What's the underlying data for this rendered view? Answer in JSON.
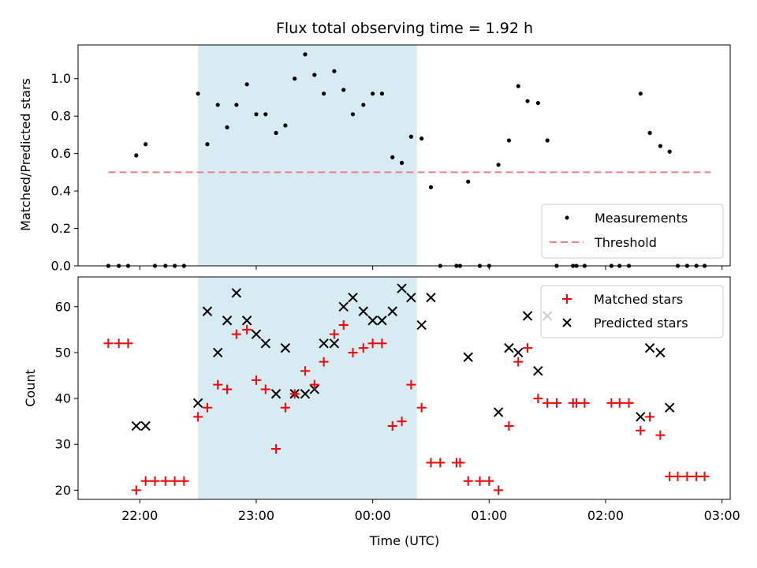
{
  "chart_data": {
    "title": "Flux total observing time = 1.92 h",
    "xlabel": "Time (UTC)",
    "x_ticks": [
      "22:00",
      "23:00",
      "00:00",
      "01:00",
      "02:00",
      "03:00"
    ],
    "x_range_hours": [
      21.47,
      27.07
    ],
    "highlight_span": {
      "start": 22.5,
      "end": 24.38,
      "color": "#add8e6"
    },
    "colors": {
      "threshold": "#f08080",
      "matched": "#ff0000",
      "predicted": "#000000",
      "measurement": "#000000",
      "span": "#add8e6"
    },
    "top": {
      "type": "scatter",
      "ylabel": "Matched/Predicted stars",
      "ylim": [
        0,
        1.18
      ],
      "y_ticks": [
        0.0,
        0.2,
        0.4,
        0.6,
        0.8,
        1.0
      ],
      "y_tick_labels": [
        "0.0",
        "0.2",
        "0.4",
        "0.6",
        "0.8",
        "1.0"
      ],
      "threshold": {
        "value": 0.5,
        "x_start": 21.73,
        "x_end": 26.9
      },
      "legend": [
        "Measurements",
        "Threshold"
      ],
      "legend_position": "lower-right",
      "measurements": [
        [
          21.73,
          0
        ],
        [
          21.82,
          0
        ],
        [
          21.9,
          0
        ],
        [
          21.97,
          0.59
        ],
        [
          22.05,
          0.65
        ],
        [
          22.13,
          0
        ],
        [
          22.22,
          0
        ],
        [
          22.3,
          0
        ],
        [
          22.38,
          0
        ],
        [
          22.5,
          0.92
        ],
        [
          22.58,
          0.65
        ],
        [
          22.67,
          0.86
        ],
        [
          22.75,
          0.74
        ],
        [
          22.83,
          0.86
        ],
        [
          22.92,
          0.97
        ],
        [
          23.0,
          0.81
        ],
        [
          23.08,
          0.81
        ],
        [
          23.17,
          0.71
        ],
        [
          23.25,
          0.75
        ],
        [
          23.33,
          1.0
        ],
        [
          23.42,
          1.13
        ],
        [
          23.5,
          1.02
        ],
        [
          23.58,
          0.92
        ],
        [
          23.67,
          1.04
        ],
        [
          23.75,
          0.94
        ],
        [
          23.83,
          0.81
        ],
        [
          23.92,
          0.86
        ],
        [
          24.0,
          0.92
        ],
        [
          24.08,
          0.92
        ],
        [
          24.17,
          0.58
        ],
        [
          24.25,
          0.55
        ],
        [
          24.33,
          0.69
        ],
        [
          24.42,
          0.68
        ],
        [
          24.5,
          0.42
        ],
        [
          24.58,
          0
        ],
        [
          24.72,
          0
        ],
        [
          24.75,
          0
        ],
        [
          24.82,
          0.45
        ],
        [
          24.92,
          0
        ],
        [
          25.0,
          0
        ],
        [
          25.08,
          0.54
        ],
        [
          25.17,
          0.67
        ],
        [
          25.25,
          0.96
        ],
        [
          25.33,
          0.88
        ],
        [
          25.42,
          0.87
        ],
        [
          25.5,
          0.67
        ],
        [
          25.58,
          0
        ],
        [
          25.72,
          0
        ],
        [
          25.75,
          0
        ],
        [
          25.82,
          0
        ],
        [
          26.05,
          0
        ],
        [
          26.12,
          0
        ],
        [
          26.2,
          0
        ],
        [
          26.3,
          0.92
        ],
        [
          26.38,
          0.71
        ],
        [
          26.47,
          0.64
        ],
        [
          26.55,
          0.61
        ],
        [
          26.62,
          0
        ],
        [
          26.7,
          0
        ],
        [
          26.78,
          0
        ],
        [
          26.85,
          0
        ]
      ]
    },
    "bottom": {
      "type": "scatter",
      "ylabel": "Count",
      "ylim": [
        18,
        66.5
      ],
      "y_ticks": [
        20,
        30,
        40,
        50,
        60
      ],
      "y_tick_labels": [
        "20",
        "30",
        "40",
        "50",
        "60"
      ],
      "legend": [
        "Matched stars",
        "Predicted stars"
      ],
      "legend_position": "upper-right",
      "matched": [
        [
          21.73,
          52
        ],
        [
          21.82,
          52
        ],
        [
          21.9,
          52
        ],
        [
          21.97,
          20
        ],
        [
          22.05,
          22
        ],
        [
          22.13,
          22
        ],
        [
          22.22,
          22
        ],
        [
          22.3,
          22
        ],
        [
          22.38,
          22
        ],
        [
          22.5,
          36
        ],
        [
          22.58,
          38
        ],
        [
          22.67,
          43
        ],
        [
          22.75,
          42
        ],
        [
          22.83,
          54
        ],
        [
          22.92,
          55
        ],
        [
          23.0,
          44
        ],
        [
          23.08,
          42
        ],
        [
          23.17,
          29
        ],
        [
          23.25,
          38
        ],
        [
          23.33,
          41
        ],
        [
          23.42,
          46
        ],
        [
          23.5,
          43
        ],
        [
          23.58,
          48
        ],
        [
          23.67,
          54
        ],
        [
          23.75,
          56
        ],
        [
          23.83,
          50
        ],
        [
          23.92,
          51
        ],
        [
          24.0,
          52
        ],
        [
          24.08,
          52
        ],
        [
          24.17,
          34
        ],
        [
          24.25,
          35
        ],
        [
          24.33,
          43
        ],
        [
          24.42,
          38
        ],
        [
          24.5,
          26
        ],
        [
          24.58,
          26
        ],
        [
          24.72,
          26
        ],
        [
          24.75,
          26
        ],
        [
          24.82,
          22
        ],
        [
          24.92,
          22
        ],
        [
          25.0,
          22
        ],
        [
          25.08,
          20
        ],
        [
          25.17,
          34
        ],
        [
          25.25,
          48
        ],
        [
          25.33,
          51
        ],
        [
          25.42,
          40
        ],
        [
          25.5,
          39
        ],
        [
          25.58,
          39
        ],
        [
          25.72,
          39
        ],
        [
          25.75,
          39
        ],
        [
          25.82,
          39
        ],
        [
          26.05,
          39
        ],
        [
          26.12,
          39
        ],
        [
          26.2,
          39
        ],
        [
          26.3,
          33
        ],
        [
          26.38,
          36
        ],
        [
          26.47,
          32
        ],
        [
          26.55,
          23
        ],
        [
          26.62,
          23
        ],
        [
          26.7,
          23
        ],
        [
          26.78,
          23
        ],
        [
          26.85,
          23
        ]
      ],
      "predicted": [
        [
          21.97,
          34
        ],
        [
          22.05,
          34
        ],
        [
          22.5,
          39
        ],
        [
          22.58,
          59
        ],
        [
          22.67,
          50
        ],
        [
          22.75,
          57
        ],
        [
          22.83,
          63
        ],
        [
          22.92,
          57
        ],
        [
          23.0,
          54
        ],
        [
          23.08,
          52
        ],
        [
          23.17,
          41
        ],
        [
          23.25,
          51
        ],
        [
          23.33,
          41
        ],
        [
          23.42,
          41
        ],
        [
          23.5,
          42
        ],
        [
          23.58,
          52
        ],
        [
          23.67,
          52
        ],
        [
          23.75,
          60
        ],
        [
          23.83,
          62
        ],
        [
          23.92,
          59
        ],
        [
          24.0,
          57
        ],
        [
          24.08,
          57
        ],
        [
          24.17,
          59
        ],
        [
          24.25,
          64
        ],
        [
          24.33,
          62
        ],
        [
          24.42,
          56
        ],
        [
          24.5,
          62
        ],
        [
          24.82,
          49
        ],
        [
          25.08,
          37
        ],
        [
          25.17,
          51
        ],
        [
          25.25,
          50
        ],
        [
          25.33,
          58
        ],
        [
          25.42,
          46
        ],
        [
          25.5,
          58
        ],
        [
          26.3,
          36
        ],
        [
          26.38,
          51
        ],
        [
          26.47,
          50
        ],
        [
          26.55,
          38
        ]
      ]
    }
  }
}
